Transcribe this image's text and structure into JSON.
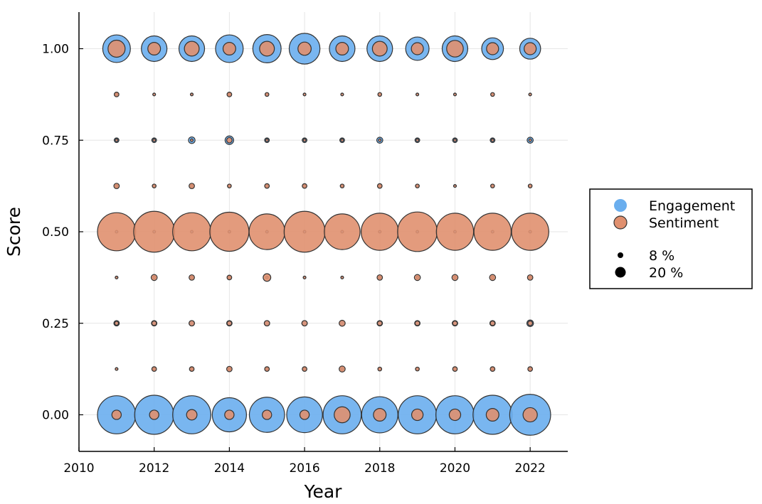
{
  "chart_data": {
    "type": "scatter",
    "xlabel": "Year",
    "ylabel": "Score",
    "xlim": [
      2010,
      2023
    ],
    "ylim": [
      -0.1,
      1.1
    ],
    "x_ticks": [
      2010,
      2012,
      2014,
      2016,
      2018,
      2020,
      2022
    ],
    "y_ticks": [
      0.0,
      0.25,
      0.5,
      0.75,
      1.0
    ],
    "x_tick_labels": [
      "2010",
      "2012",
      "2014",
      "2016",
      "2018",
      "2020",
      "2022"
    ],
    "y_tick_labels": [
      "0.00",
      "0.25",
      "0.50",
      "0.75",
      "1.00"
    ],
    "grid": true,
    "legend_position": "outside-right",
    "score_levels": [
      0.0,
      0.125,
      0.25,
      0.375,
      0.5,
      0.625,
      0.75,
      0.875,
      1.0
    ],
    "years": [
      2011,
      2012,
      2013,
      2014,
      2015,
      2016,
      2017,
      2018,
      2019,
      2020,
      2021,
      2022
    ],
    "size_unit": "percent",
    "series": [
      {
        "name": "Engagement",
        "color": "#6aaeee",
        "sizes": [
          [
            20.0,
            21.0,
            20.0,
            16.0,
            17.0,
            17.5,
            20.0,
            18.0,
            20.0,
            20.0,
            21.0,
            23.0
          ],
          [
            0.1,
            0.1,
            0.1,
            0.1,
            0.1,
            0.1,
            0.1,
            0.1,
            0.1,
            0.1,
            0.1,
            0.1
          ],
          [
            0.4,
            0.4,
            0.4,
            0.4,
            0.4,
            0.4,
            0.4,
            0.4,
            0.4,
            0.4,
            0.4,
            0.6
          ],
          [
            0.1,
            0.1,
            0.1,
            0.1,
            0.1,
            0.1,
            0.1,
            0.1,
            0.1,
            0.1,
            0.1,
            0.1
          ],
          [
            0.1,
            0.1,
            0.1,
            0.1,
            0.1,
            0.1,
            0.1,
            0.1,
            0.1,
            0.1,
            0.1,
            0.1
          ],
          [
            0.1,
            0.1,
            0.1,
            0.1,
            0.1,
            0.1,
            0.1,
            0.1,
            0.1,
            0.1,
            0.1,
            0.1
          ],
          [
            0.3,
            0.3,
            0.6,
            1.0,
            0.3,
            0.3,
            0.3,
            0.5,
            0.3,
            0.3,
            0.3,
            0.5
          ],
          [
            0.1,
            0.1,
            0.1,
            0.1,
            0.1,
            0.1,
            0.1,
            0.1,
            0.1,
            0.1,
            0.1,
            0.1
          ],
          [
            10.5,
            9.0,
            9.0,
            10.5,
            11.0,
            13.0,
            9.0,
            9.0,
            7.5,
            9.0,
            6.5,
            6.0
          ]
        ]
      },
      {
        "name": "Sentiment",
        "color": "#e0906f",
        "sizes": [
          [
            1.2,
            1.2,
            1.5,
            1.2,
            1.2,
            1.2,
            3.5,
            2.2,
            1.8,
            1.8,
            2.2,
            2.8
          ],
          [
            0.1,
            0.3,
            0.3,
            0.4,
            0.3,
            0.3,
            0.5,
            0.2,
            0.2,
            0.3,
            0.3,
            0.3
          ],
          [
            0.2,
            0.3,
            0.4,
            0.3,
            0.4,
            0.4,
            0.5,
            0.3,
            0.3,
            0.3,
            0.3,
            0.3
          ],
          [
            0.1,
            0.5,
            0.4,
            0.3,
            0.8,
            0.1,
            0.1,
            0.4,
            0.5,
            0.5,
            0.5,
            0.4
          ],
          [
            20.0,
            23.0,
            20.0,
            21.0,
            17.5,
            23.0,
            17.5,
            19.0,
            21.5,
            19.0,
            19.0,
            19.0
          ],
          [
            0.4,
            0.2,
            0.4,
            0.2,
            0.3,
            0.3,
            0.2,
            0.3,
            0.2,
            0.1,
            0.2,
            0.2
          ],
          [
            0.1,
            0.1,
            0.1,
            0.4,
            0.1,
            0.1,
            0.1,
            0.1,
            0.1,
            0.1,
            0.1,
            0.1
          ],
          [
            0.3,
            0.1,
            0.1,
            0.3,
            0.2,
            0.1,
            0.1,
            0.2,
            0.1,
            0.1,
            0.2,
            0.1
          ],
          [
            4.0,
            2.2,
            3.0,
            2.2,
            3.0,
            2.4,
            2.2,
            3.0,
            2.0,
            3.8,
            2.0,
            2.0
          ]
        ]
      }
    ],
    "size_legend": [
      {
        "label": "8 %",
        "value": 8
      },
      {
        "label": "20 %",
        "value": 20
      }
    ]
  }
}
